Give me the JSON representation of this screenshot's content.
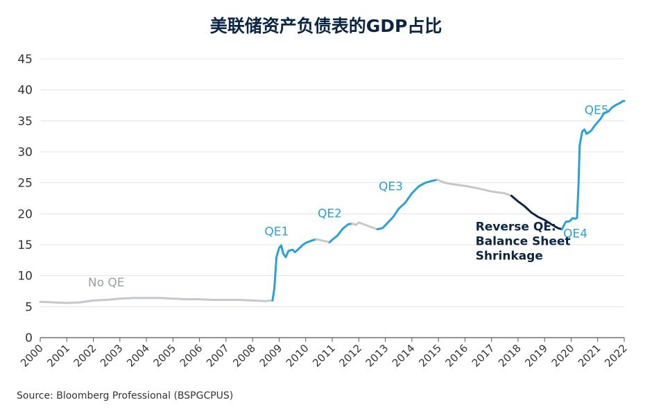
{
  "chart_data": {
    "type": "line",
    "title": "美联储资产负债表的GDP占比",
    "xlabel": "",
    "ylabel": "",
    "ylim": [
      0,
      45
    ],
    "yticks": [
      0,
      5,
      10,
      15,
      20,
      25,
      30,
      35,
      40,
      45
    ],
    "xlim": [
      2000,
      2022
    ],
    "xticks": [
      "2000",
      "2001",
      "2002",
      "2003",
      "2004",
      "2005",
      "2006",
      "2007",
      "2008",
      "2009",
      "2010",
      "2011",
      "2012",
      "2013",
      "2014",
      "2015",
      "2016",
      "2017",
      "2018",
      "2019",
      "2020",
      "2021",
      "2022"
    ],
    "grid": true,
    "legend": "none",
    "colors": {
      "qe": "#2aa1d3",
      "no_qe": "#c4c8cc",
      "reverse": "#0b2545",
      "grid": "#e3e3e3",
      "axis": "#333333"
    },
    "series": [
      {
        "name": "No QE",
        "color": "#c4c8cc",
        "points": [
          [
            2000.0,
            5.8
          ],
          [
            2000.5,
            5.7
          ],
          [
            2001.0,
            5.6
          ],
          [
            2001.5,
            5.7
          ],
          [
            2002.0,
            6.0
          ],
          [
            2002.5,
            6.1
          ],
          [
            2003.0,
            6.3
          ],
          [
            2003.5,
            6.4
          ],
          [
            2004.0,
            6.4
          ],
          [
            2004.5,
            6.4
          ],
          [
            2005.0,
            6.3
          ],
          [
            2005.5,
            6.2
          ],
          [
            2006.0,
            6.2
          ],
          [
            2006.5,
            6.1
          ],
          [
            2007.0,
            6.1
          ],
          [
            2007.5,
            6.1
          ],
          [
            2008.0,
            6.0
          ],
          [
            2008.5,
            5.9
          ],
          [
            2008.75,
            6.0
          ]
        ]
      },
      {
        "name": "QE1",
        "color": "#2aa1d3",
        "points": [
          [
            2008.75,
            6.0
          ],
          [
            2008.82,
            8.0
          ],
          [
            2008.9,
            13.0
          ],
          [
            2009.0,
            14.5
          ],
          [
            2009.08,
            14.9
          ],
          [
            2009.15,
            13.6
          ],
          [
            2009.25,
            13.0
          ],
          [
            2009.35,
            14.0
          ],
          [
            2009.5,
            14.2
          ],
          [
            2009.6,
            13.8
          ],
          [
            2009.75,
            14.4
          ],
          [
            2009.9,
            15.0
          ],
          [
            2010.0,
            15.3
          ],
          [
            2010.25,
            15.7
          ],
          [
            2010.4,
            15.9
          ]
        ]
      },
      {
        "name": "",
        "color": "#c4c8cc",
        "points": [
          [
            2010.4,
            15.9
          ],
          [
            2010.6,
            15.7
          ],
          [
            2010.9,
            15.4
          ]
        ]
      },
      {
        "name": "QE2",
        "color": "#2aa1d3",
        "points": [
          [
            2010.9,
            15.4
          ],
          [
            2011.0,
            15.8
          ],
          [
            2011.2,
            16.5
          ],
          [
            2011.4,
            17.6
          ],
          [
            2011.6,
            18.3
          ],
          [
            2011.75,
            18.4
          ]
        ]
      },
      {
        "name": "",
        "color": "#c4c8cc",
        "points": [
          [
            2011.75,
            18.4
          ],
          [
            2011.9,
            18.2
          ],
          [
            2012.0,
            18.6
          ],
          [
            2012.25,
            18.2
          ],
          [
            2012.5,
            17.8
          ],
          [
            2012.7,
            17.5
          ]
        ]
      },
      {
        "name": "QE3",
        "color": "#2aa1d3",
        "points": [
          [
            2012.7,
            17.5
          ],
          [
            2012.9,
            17.7
          ],
          [
            2013.1,
            18.6
          ],
          [
            2013.3,
            19.5
          ],
          [
            2013.5,
            20.8
          ],
          [
            2013.75,
            21.8
          ],
          [
            2014.0,
            23.3
          ],
          [
            2014.25,
            24.4
          ],
          [
            2014.5,
            25.0
          ],
          [
            2014.75,
            25.3
          ],
          [
            2014.95,
            25.5
          ]
        ]
      },
      {
        "name": "",
        "color": "#c4c8cc",
        "points": [
          [
            2014.95,
            25.5
          ],
          [
            2015.25,
            25.0
          ],
          [
            2015.5,
            24.8
          ],
          [
            2016.0,
            24.5
          ],
          [
            2016.5,
            24.1
          ],
          [
            2017.0,
            23.6
          ],
          [
            2017.5,
            23.3
          ],
          [
            2017.75,
            22.9
          ]
        ]
      },
      {
        "name": "Reverse QE: Balance Sheet Shrinkage",
        "color": "#0b2545",
        "points": [
          [
            2017.75,
            22.9
          ],
          [
            2018.0,
            22.0
          ],
          [
            2018.25,
            21.2
          ],
          [
            2018.5,
            20.2
          ],
          [
            2018.75,
            19.5
          ],
          [
            2019.0,
            19.0
          ],
          [
            2019.25,
            18.3
          ],
          [
            2019.5,
            17.7
          ],
          [
            2019.65,
            17.5
          ]
        ]
      },
      {
        "name": "QE4",
        "color": "#2aa1d3",
        "points": [
          [
            2019.65,
            17.5
          ],
          [
            2019.8,
            18.7
          ],
          [
            2019.95,
            18.8
          ],
          [
            2020.05,
            19.3
          ],
          [
            2020.15,
            19.2
          ],
          [
            2020.22,
            19.3
          ],
          [
            2020.28,
            25.0
          ],
          [
            2020.32,
            31.0
          ]
        ]
      },
      {
        "name": "QE5",
        "color": "#2aa1d3",
        "points": [
          [
            2020.32,
            31.0
          ],
          [
            2020.42,
            33.3
          ],
          [
            2020.5,
            33.6
          ],
          [
            2020.58,
            32.9
          ],
          [
            2020.75,
            33.4
          ],
          [
            2020.9,
            34.3
          ],
          [
            2021.1,
            35.3
          ],
          [
            2021.25,
            36.3
          ],
          [
            2021.4,
            36.5
          ],
          [
            2021.55,
            37.2
          ],
          [
            2021.7,
            37.6
          ],
          [
            2021.85,
            37.9
          ],
          [
            2021.95,
            38.2
          ],
          [
            2022.0,
            38.2
          ]
        ]
      }
    ],
    "annotations": [
      {
        "text": "No QE",
        "x": 2001.8,
        "y": 8.3,
        "color": "#9aa0a6",
        "lines": [
          "No QE"
        ]
      },
      {
        "text": "QE1",
        "x": 2008.45,
        "y": 16.5,
        "color": "#2aa1d3",
        "lines": [
          "QE1"
        ]
      },
      {
        "text": "QE2",
        "x": 2010.45,
        "y": 19.4,
        "color": "#2aa1d3",
        "lines": [
          "QE2"
        ]
      },
      {
        "text": "QE3",
        "x": 2012.75,
        "y": 23.8,
        "color": "#2aa1d3",
        "lines": [
          "QE3"
        ]
      },
      {
        "text": "Reverse QE: Balance Sheet Shrinkage",
        "x": 2016.4,
        "y": 17.3,
        "color": "#0b2545",
        "lines": [
          "Reverse QE:",
          "Balance Sheet",
          "Shrinkage"
        ]
      },
      {
        "text": "QE4",
        "x": 2019.7,
        "y": 16.2,
        "color": "#2aa1d3",
        "lines": [
          "QE4"
        ]
      },
      {
        "text": "QE5",
        "x": 2020.5,
        "y": 36.1,
        "color": "#2aa1d3",
        "lines": [
          "QE5"
        ]
      }
    ]
  },
  "source": "Source: Bloomberg Professional (BSPGCPUS)"
}
